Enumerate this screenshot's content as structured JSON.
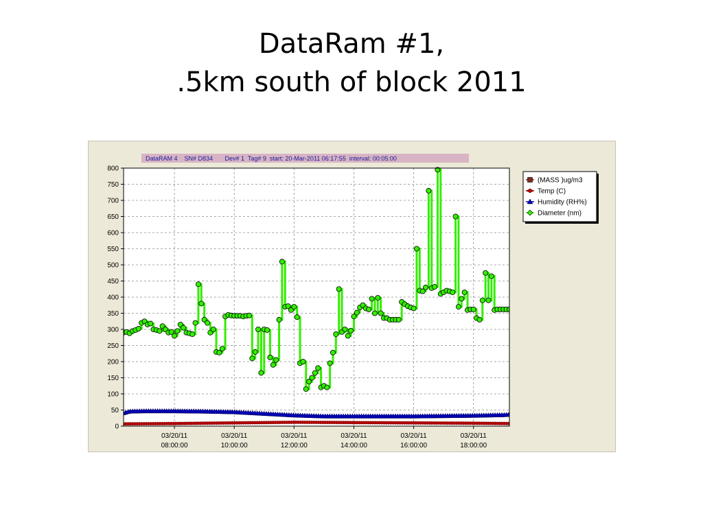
{
  "slide": {
    "title_line1": "DataRam #1,",
    "title_line2": ".5km south of block 2011"
  },
  "chart_data": {
    "type": "line",
    "header": "DataRAM 4    SN# D834       Dev# 1  Tag# 9  start: 20-Mar-2011 06:17:55  interval: 00:05:00",
    "ylim": [
      0,
      800
    ],
    "yticks": [
      "800",
      "750",
      "700",
      "650",
      "600",
      "550",
      "500",
      "450",
      "400",
      "350",
      "300",
      "250",
      "200",
      "150",
      "100",
      "50",
      "0"
    ],
    "xlim": [
      6.3,
      19.2
    ],
    "xticks": [
      {
        "x": 8,
        "date": "03/20/11",
        "time": "08:00:00"
      },
      {
        "x": 10,
        "date": "03/20/11",
        "time": "10:00:00"
      },
      {
        "x": 12,
        "date": "03/20/11",
        "time": "12:00:00"
      },
      {
        "x": 14,
        "date": "03/20/11",
        "time": "14:00:00"
      },
      {
        "x": 16,
        "date": "03/20/11",
        "time": "16:00:00"
      },
      {
        "x": 18,
        "date": "03/20/11",
        "time": "18:00:00"
      }
    ],
    "grid": true,
    "legend_position": "right",
    "series": [
      {
        "name": "(MASS )ug/m3",
        "color": "#7b2b1e",
        "marker": "square",
        "x": [],
        "y": []
      },
      {
        "name": "Temp (C)",
        "color": "#c00000",
        "marker": "diamond-arrow",
        "x": [
          6.3,
          8,
          10,
          12,
          14,
          16,
          18,
          19.2
        ],
        "y": [
          7,
          8,
          10,
          12,
          11,
          10,
          9,
          8
        ]
      },
      {
        "name": "Humidity (RH%)",
        "color": "#0000c0",
        "marker": "triangle",
        "x": [
          6.3,
          6.5,
          7,
          8,
          9,
          10,
          11,
          12,
          13,
          14,
          15,
          16,
          17,
          18,
          19,
          19.2
        ],
        "y": [
          40,
          45,
          46,
          46,
          45,
          43,
          38,
          33,
          30,
          30,
          30,
          30,
          31,
          32,
          34,
          35
        ]
      },
      {
        "name": "Diameter (nm)",
        "color": "#33ee00",
        "marker": "circle",
        "x": [
          6.3,
          6.4,
          6.5,
          6.6,
          6.7,
          6.8,
          6.9,
          7.0,
          7.1,
          7.2,
          7.3,
          7.4,
          7.5,
          7.6,
          7.7,
          7.8,
          7.9,
          8.0,
          8.1,
          8.2,
          8.3,
          8.4,
          8.5,
          8.6,
          8.7,
          8.8,
          8.9,
          9.0,
          9.1,
          9.2,
          9.3,
          9.4,
          9.5,
          9.6,
          9.7,
          9.8,
          9.9,
          10.0,
          10.1,
          10.2,
          10.3,
          10.4,
          10.5,
          10.6,
          10.7,
          10.8,
          10.9,
          11.0,
          11.1,
          11.2,
          11.3,
          11.4,
          11.5,
          11.6,
          11.7,
          11.8,
          11.9,
          12.0,
          12.1,
          12.2,
          12.3,
          12.4,
          12.5,
          12.6,
          12.7,
          12.8,
          12.9,
          13.0,
          13.1,
          13.2,
          13.3,
          13.4,
          13.5,
          13.6,
          13.7,
          13.8,
          13.9,
          14.0,
          14.1,
          14.2,
          14.3,
          14.4,
          14.5,
          14.6,
          14.7,
          14.8,
          14.9,
          15.0,
          15.1,
          15.2,
          15.3,
          15.4,
          15.5,
          15.6,
          15.7,
          15.8,
          15.9,
          16.0,
          16.1,
          16.2,
          16.3,
          16.4,
          16.5,
          16.6,
          16.7,
          16.8,
          16.9,
          17.0,
          17.1,
          17.2,
          17.3,
          17.4,
          17.5,
          17.6,
          17.7,
          17.8,
          17.9,
          18.0,
          18.1,
          18.2,
          18.3,
          18.4,
          18.5,
          18.6,
          18.7,
          18.8,
          18.9,
          19.0,
          19.1,
          19.2
        ],
        "y": [
          290,
          292,
          288,
          295,
          298,
          302,
          320,
          325,
          315,
          318,
          300,
          298,
          295,
          310,
          300,
          290,
          292,
          280,
          295,
          315,
          305,
          290,
          288,
          285,
          320,
          440,
          380,
          330,
          320,
          290,
          300,
          230,
          228,
          240,
          340,
          345,
          343,
          342,
          342,
          342,
          340,
          342,
          343,
          210,
          230,
          300,
          165,
          300,
          298,
          213,
          190,
          205,
          330,
          510,
          370,
          372,
          360,
          370,
          338,
          195,
          200,
          115,
          138,
          150,
          165,
          180,
          120,
          125,
          120,
          195,
          228,
          285,
          425,
          292,
          300,
          280,
          296,
          340,
          352,
          368,
          375,
          365,
          362,
          395,
          350,
          398,
          350,
          335,
          335,
          330,
          330,
          330,
          330,
          385,
          378,
          372,
          368,
          365,
          550,
          420,
          418,
          430,
          730,
          428,
          432,
          795,
          410,
          415,
          420,
          418,
          415,
          650,
          370,
          395,
          415,
          360,
          362,
          362,
          335,
          330,
          390,
          475,
          390,
          465,
          360,
          362,
          362,
          362,
          362,
          362
        ]
      }
    ]
  }
}
